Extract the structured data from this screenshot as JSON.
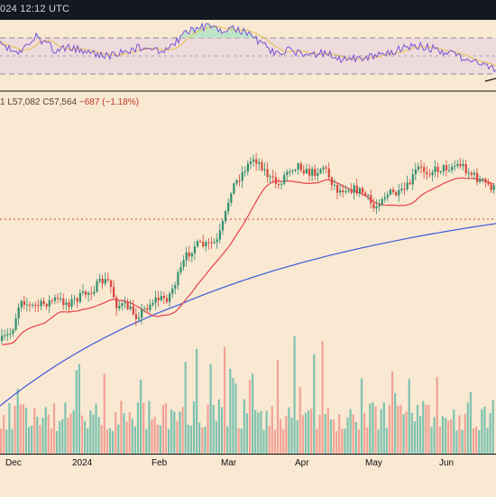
{
  "header": {
    "timestamp_text": "024 12:12 UTC"
  },
  "ohlc_legend": {
    "low_text": "1 L57,082",
    "close_text": "C57,564",
    "change_text": "−687 (−1.18%)"
  },
  "colors": {
    "background": "#f9e8d2",
    "up": "#2f8f6f",
    "down": "#d8463c",
    "ma_fast": "#e8424a",
    "ma_slow": "#3b5bdb",
    "rsi_line": "#7b55d6",
    "rsi_ma": "#e5c04a",
    "volume_up": "#7ec3b0",
    "volume_down": "#f1a396",
    "price_line": "#d8463c"
  },
  "chart_data": {
    "type": "candlestick",
    "x_labels": [
      "Dec",
      "2024",
      "Feb",
      "Mar",
      "Apr",
      "May",
      "Jun"
    ],
    "last_close": 57564,
    "last_low": 57082,
    "change": -687,
    "change_pct": -1.18,
    "indicators": [
      "RSI",
      "MA fast",
      "MA slow",
      "Volume"
    ]
  }
}
